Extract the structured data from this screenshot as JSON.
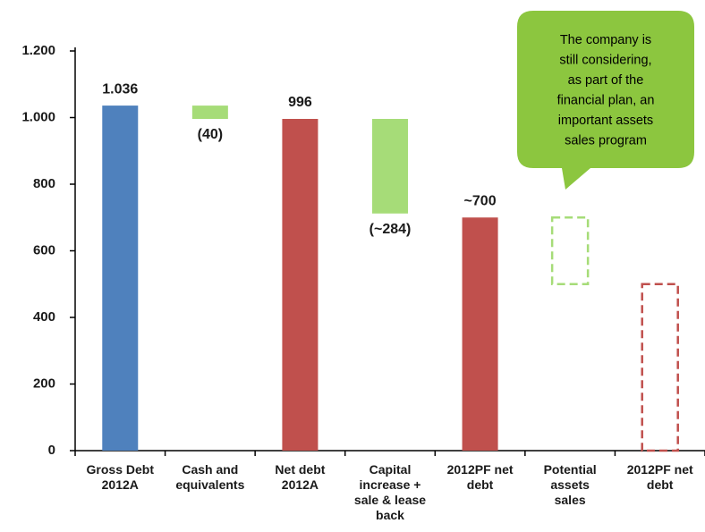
{
  "chart_data": {
    "type": "waterfall",
    "categories": [
      "Gross Debt\n2012A",
      "Cash and\nequivalents",
      "Net debt\n2012A",
      "Capital\nincrease +\nsale & lease\nback",
      "2012PF net\ndebt",
      "Potential\nassets\nsales",
      "2012PF net\ndebt"
    ],
    "values": [
      1036,
      -40,
      996,
      -284,
      700,
      -200,
      500
    ],
    "value_labels": [
      "1.036",
      "(40)",
      "996",
      "(~284)",
      "~700",
      null,
      null
    ],
    "bar_kind": [
      "total",
      "delta",
      "total",
      "delta",
      "total",
      "delta",
      "total"
    ],
    "colors": [
      "#4f81bd",
      "#a6dc78",
      "#c0504d",
      "#a6dc78",
      "#c0504d",
      "#a6dc78",
      "#c0504d"
    ],
    "dashed": [
      false,
      false,
      false,
      false,
      false,
      true,
      true
    ],
    "ylim": [
      0,
      1200
    ],
    "yticks": [
      0,
      200,
      400,
      600,
      800,
      {
        "value": 1000,
        "label": "1.000"
      },
      {
        "value": 1200,
        "label": "1.200"
      }
    ],
    "annotation": {
      "lines": [
        "The company is",
        "still considering,",
        "as part of the",
        "financial plan, an",
        "important assets",
        "sales program"
      ],
      "color": "#8cc63f"
    }
  }
}
